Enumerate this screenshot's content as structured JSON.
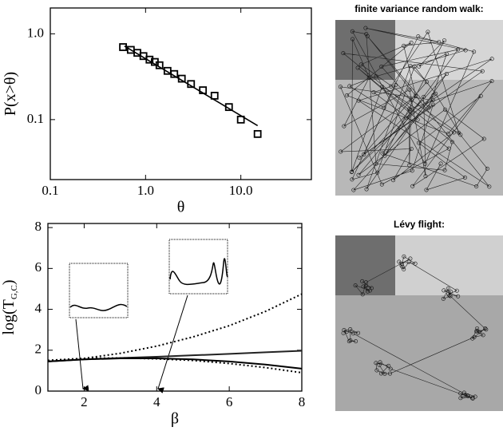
{
  "chart_data": [
    {
      "type": "scatter",
      "log": true,
      "xlabel": "θ",
      "ylabel": "P(x>θ)",
      "xlim": [
        0.1,
        55
      ],
      "ylim": [
        0.02,
        2
      ],
      "xticks": [
        0.1,
        {
          "value": 1,
          "label": "1.0"
        },
        {
          "value": 10,
          "label": "10.0"
        }
      ],
      "yticks": [
        0.1,
        {
          "value": 1,
          "label": "1.0"
        }
      ],
      "series": [
        {
          "mode": "markers",
          "color": "#000",
          "x": [
            0.58,
            0.7,
            0.82,
            0.95,
            1.1,
            1.25,
            1.4,
            1.7,
            2.0,
            2.4,
            3.0,
            4.0,
            5.3,
            7.5,
            10,
            15
          ],
          "values": [
            0.7,
            0.65,
            0.6,
            0.55,
            0.5,
            0.47,
            0.43,
            0.37,
            0.34,
            0.3,
            0.26,
            0.22,
            0.19,
            0.14,
            0.1,
            0.068
          ]
        },
        {
          "mode": "line",
          "color": "#000",
          "x": [
            0.6,
            15
          ],
          "values": [
            0.72,
            0.085
          ]
        }
      ]
    },
    {
      "type": "line",
      "log": false,
      "xlabel": "β",
      "ylabel": "log(T",
      "ylabel_sub": "G,C",
      "ylabel_end": ")",
      "xlim": [
        1,
        8
      ],
      "ylim": [
        0,
        8.2
      ],
      "xticks": [
        2,
        4,
        6,
        8
      ],
      "yticks": [
        0,
        2,
        4,
        6,
        8
      ],
      "x": [
        1,
        2,
        3,
        4,
        5,
        6,
        7,
        8
      ],
      "series": [
        {
          "dash": "dotted",
          "color": "#000",
          "values": [
            1.5,
            1.6,
            1.85,
            2.2,
            2.65,
            3.2,
            3.9,
            4.75
          ]
        },
        {
          "dash": "solid",
          "color": "#222",
          "values": [
            1.45,
            1.55,
            1.62,
            1.68,
            1.75,
            1.82,
            1.9,
            1.97
          ]
        },
        {
          "dash": "solid",
          "color": "#000",
          "values": [
            1.45,
            1.55,
            1.6,
            1.6,
            1.55,
            1.45,
            1.3,
            1.1
          ]
        },
        {
          "dash": "dotted",
          "color": "#000",
          "values": [
            1.5,
            1.6,
            1.62,
            1.58,
            1.5,
            1.35,
            1.15,
            0.9
          ]
        }
      ]
    }
  ],
  "panels": [
    {
      "title": "finite variance random walk:"
    },
    {
      "title": "Lévy flight:"
    }
  ]
}
